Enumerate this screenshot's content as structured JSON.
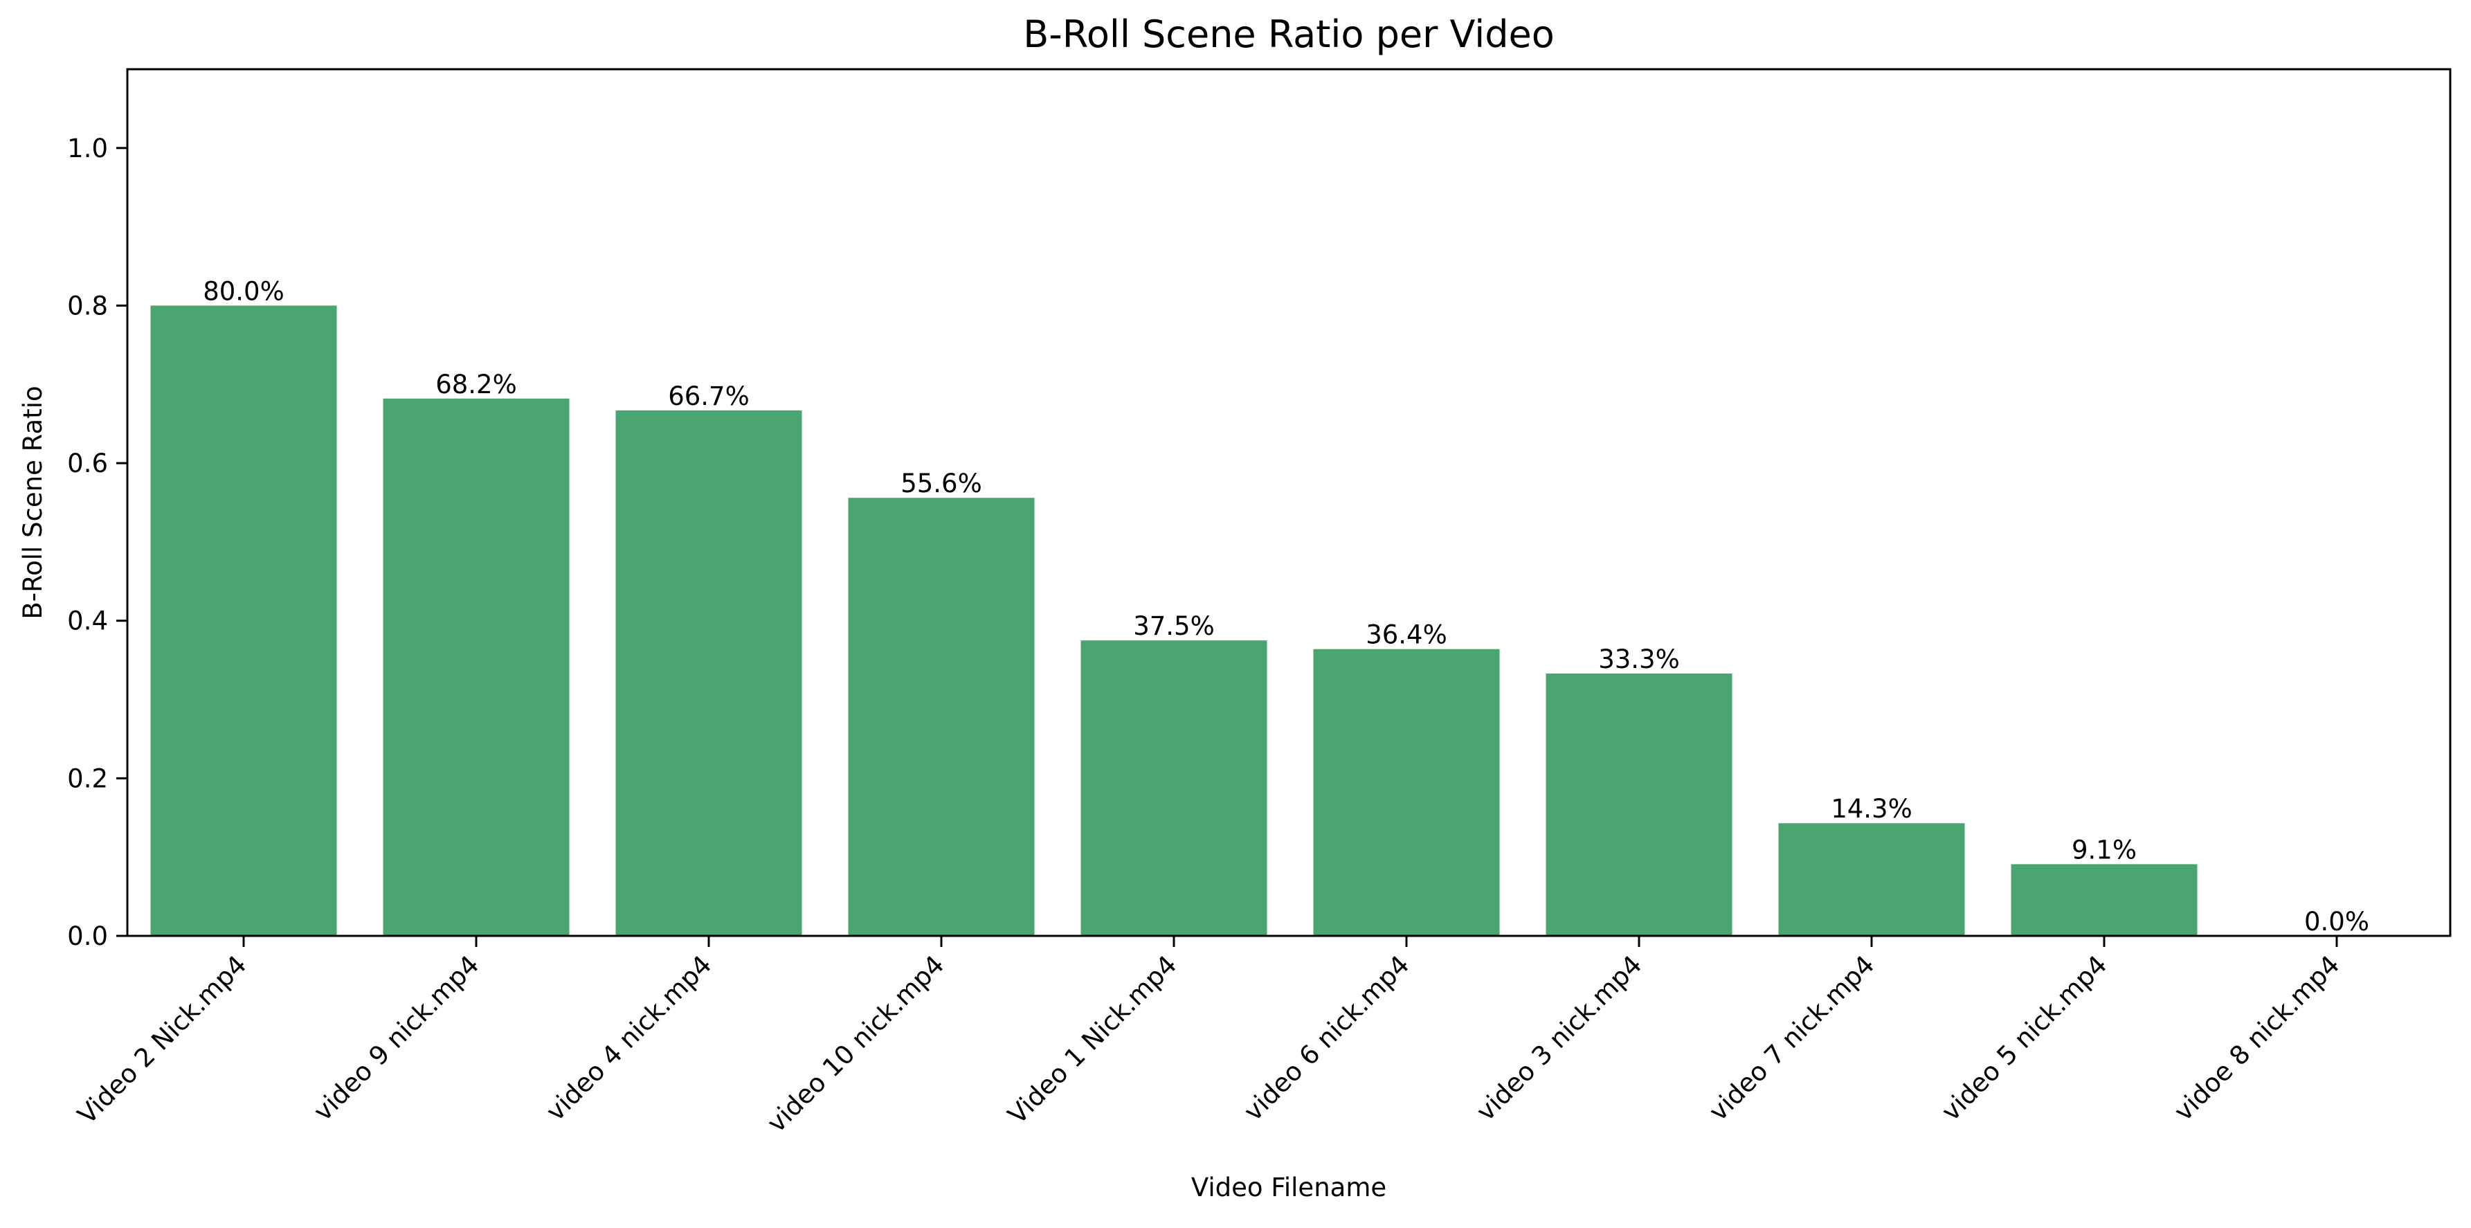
{
  "chart_data": {
    "type": "bar",
    "title": "B-Roll Scene Ratio per Video",
    "xlabel": "Video Filename",
    "ylabel": "B-Roll Scene Ratio",
    "ylim": [
      0,
      1.1
    ],
    "yticks": [
      0.0,
      0.2,
      0.4,
      0.6,
      0.8,
      1.0
    ],
    "ytick_labels": [
      "0.0",
      "0.2",
      "0.4",
      "0.6",
      "0.8",
      "1.0"
    ],
    "grid": false,
    "legend": "none",
    "bar_color": "#4aa573",
    "categories": [
      "Video 2 Nick.mp4",
      "video 9 nick.mp4",
      "video 4 nick.mp4",
      "video 10 nick.mp4",
      "Video 1 Nick.mp4",
      "video 6 nick.mp4",
      "video 3 nick.mp4",
      "video 7 nick.mp4",
      "video 5 nick.mp4",
      "vidoe 8 nick.mp4"
    ],
    "values": [
      0.8,
      0.682,
      0.667,
      0.556,
      0.375,
      0.364,
      0.333,
      0.143,
      0.091,
      0.0
    ],
    "data_labels": [
      "80.0%",
      "68.2%",
      "66.7%",
      "55.6%",
      "37.5%",
      "36.4%",
      "33.3%",
      "14.3%",
      "9.1%",
      "0.0%"
    ]
  }
}
